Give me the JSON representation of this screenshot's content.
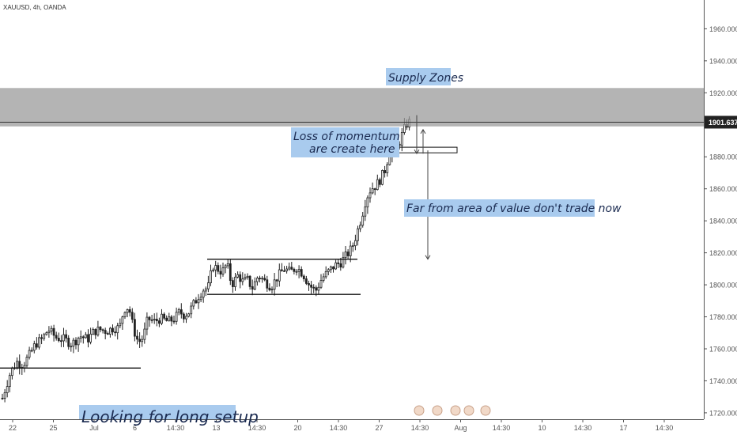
{
  "symbol": "XAUUSD, 4h, OANDA",
  "current_price_label": "1901.637",
  "colors": {
    "candle": "#222222",
    "zone": "#9b9b9b",
    "annotation_bg": "#a9cbee",
    "annotation_text": "#1a2a50",
    "price_tag": "#222222"
  },
  "annotations": {
    "supply": "Supply Zones",
    "momentum_line1": "Loss of momentum",
    "momentum_line2": "are create here",
    "far_from_value": "Far from area of value don't trade now",
    "long_setup": "Looking for long setup"
  },
  "chart_data": {
    "type": "candlestick",
    "title": "XAUUSD, 4h, OANDA",
    "ylim": [
      1716,
      1978
    ],
    "y_ticks": [
      1720,
      1740,
      1760,
      1780,
      1800,
      1820,
      1840,
      1860,
      1880,
      1900,
      1920,
      1940,
      1960
    ],
    "y_tick_labels": [
      "1720.000",
      "1740.000",
      "1760.000",
      "1780.000",
      "1800.000",
      "1820.000",
      "1840.000",
      "1860.000",
      "1880.000",
      "1900.000",
      "1920.000",
      "1940.000",
      "1960.000"
    ],
    "x_tick_labels": [
      "22",
      "25",
      "Jul",
      "6",
      "14:30",
      "13",
      "14:30",
      "20",
      "14:30",
      "27",
      "14:30",
      "Aug",
      "14:30",
      "10",
      "14:30",
      "17",
      "14:30"
    ],
    "supply_zone": [
      1899,
      1923
    ],
    "current_price": 1901.637,
    "consolidation": {
      "top": 1816,
      "bottom": 1794
    },
    "support_line": 1748,
    "momentum_box": [
      1882.5,
      1886
    ],
    "target_level": 1816,
    "close_path": [
      [
        0,
        1726
      ],
      [
        12,
        1745
      ],
      [
        20,
        1752
      ],
      [
        28,
        1750
      ],
      [
        36,
        1756
      ],
      [
        44,
        1763
      ],
      [
        52,
        1766
      ],
      [
        60,
        1772
      ],
      [
        70,
        1767
      ],
      [
        80,
        1766
      ],
      [
        90,
        1763
      ],
      [
        100,
        1768
      ],
      [
        110,
        1766
      ],
      [
        118,
        1771
      ],
      [
        126,
        1772
      ],
      [
        134,
        1771
      ],
      [
        142,
        1773
      ],
      [
        150,
        1773
      ],
      [
        156,
        1785
      ],
      [
        162,
        1786
      ],
      [
        168,
        1772
      ],
      [
        174,
        1764
      ],
      [
        180,
        1767
      ],
      [
        186,
        1779
      ],
      [
        194,
        1777
      ],
      [
        202,
        1779
      ],
      [
        212,
        1777
      ],
      [
        220,
        1779
      ],
      [
        226,
        1783
      ],
      [
        232,
        1781
      ],
      [
        238,
        1783
      ],
      [
        244,
        1788
      ],
      [
        250,
        1793
      ],
      [
        256,
        1797
      ],
      [
        262,
        1798
      ],
      [
        268,
        1812
      ],
      [
        274,
        1810
      ],
      [
        280,
        1808
      ],
      [
        286,
        1813
      ],
      [
        292,
        1800
      ],
      [
        300,
        1806
      ],
      [
        306,
        1802
      ],
      [
        312,
        1803
      ],
      [
        318,
        1798
      ],
      [
        326,
        1806
      ],
      [
        334,
        1802
      ],
      [
        342,
        1799
      ],
      [
        350,
        1805
      ],
      [
        358,
        1810
      ],
      [
        366,
        1808
      ],
      [
        374,
        1811
      ],
      [
        382,
        1807
      ],
      [
        390,
        1800
      ],
      [
        398,
        1796
      ],
      [
        406,
        1804
      ],
      [
        414,
        1808
      ],
      [
        422,
        1812
      ],
      [
        430,
        1814
      ],
      [
        438,
        1819
      ],
      [
        444,
        1823
      ],
      [
        450,
        1832
      ],
      [
        456,
        1842
      ],
      [
        462,
        1854
      ],
      [
        468,
        1860
      ],
      [
        474,
        1862
      ],
      [
        480,
        1866
      ],
      [
        486,
        1872
      ],
      [
        490,
        1880
      ],
      [
        494,
        1885
      ],
      [
        498,
        1890
      ],
      [
        502,
        1886
      ],
      [
        506,
        1892
      ],
      [
        510,
        1897
      ],
      [
        514,
        1901
      ],
      [
        518,
        1902
      ]
    ]
  }
}
